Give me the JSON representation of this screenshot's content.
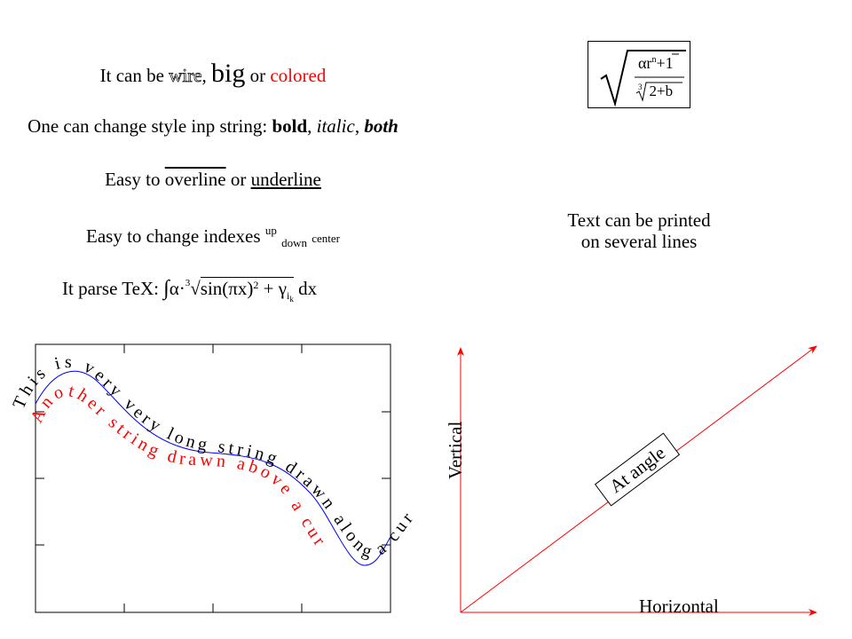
{
  "text_lines": {
    "line1": {
      "prefix": "It can be ",
      "wire": "wire",
      "comma": ", ",
      "big": "big",
      "or": " or ",
      "colored": "colored"
    },
    "line2": {
      "prefix": "One can change style inp string: ",
      "bold": "bold",
      "comma1": ", ",
      "italic": "italic",
      "comma2": ", ",
      "both": "both"
    },
    "line3": {
      "prefix": "Easy to ",
      "overline": "overline",
      "or": " or ",
      "underline": "underline"
    },
    "line4": {
      "prefix": "Easy to change indexes ",
      "up": "up",
      "down": "down",
      "center": "center"
    },
    "line5": {
      "prefix": "It parse TeX: ",
      "integral": "∫",
      "alpha": "α·",
      "root_index": "3",
      "radicand": "sin(πx)",
      "square": "2",
      "plus": " + γ",
      "sub_i": "i",
      "sub_k": "k",
      "dx": " dx"
    }
  },
  "formula_box": {
    "alpha": "αr",
    "r_exp": "n",
    "plus": "+",
    "one": "1",
    "root_index": "3",
    "denominator": "2+b"
  },
  "multiline": {
    "line1": "Text can be printed",
    "line2": "on several lines"
  },
  "curve_text": {
    "black": "This is very very long string drawn along a curve",
    "red": "Another string drawn above a curve",
    "black_color": "#000000",
    "red_color": "#ff0000",
    "curve_color": "#0000ff"
  },
  "axes_panel": {
    "vertical_label": "Vertical",
    "horizontal_label": "Horizontal",
    "angle_label": "At angle",
    "arrow_color": "#ff0000"
  }
}
